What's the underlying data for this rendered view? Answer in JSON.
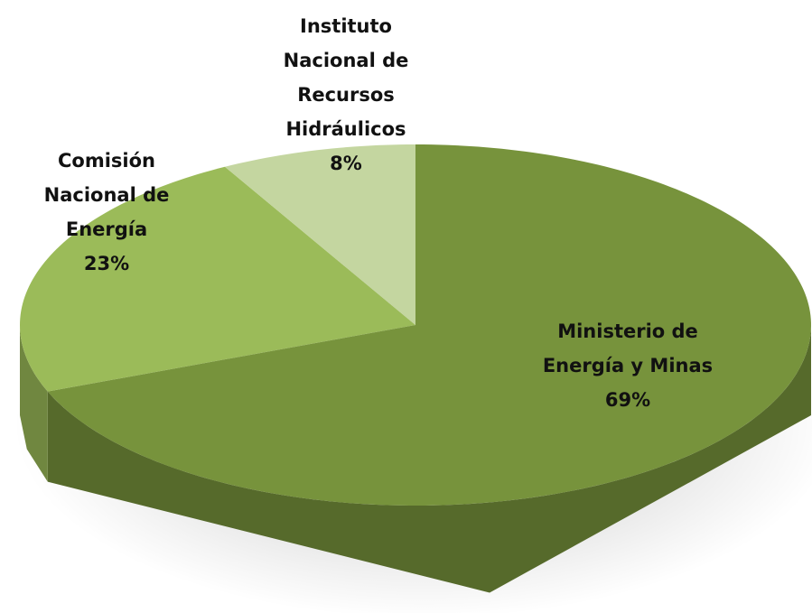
{
  "chart_data": {
    "type": "pie3d",
    "categories": [
      "Ministerio de Energía y Minas",
      "Comisión Nacional de Energía",
      "Instituto Nacional de Recursos Hidráulicos"
    ],
    "values": [
      69,
      23,
      8
    ],
    "value_labels": [
      "69%",
      "23%",
      "8%"
    ],
    "colors": [
      "#77933c",
      "#9bbb59",
      "#c4d6a0"
    ]
  }
}
